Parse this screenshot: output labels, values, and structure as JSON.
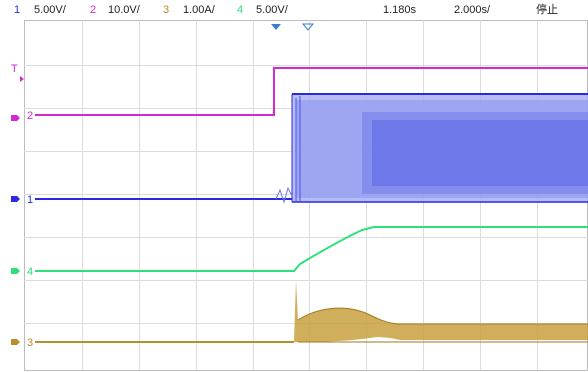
{
  "header": {
    "ch1": {
      "num": "1",
      "scale": "5.00V/"
    },
    "ch2": {
      "num": "2",
      "scale": "10.0V/"
    },
    "ch3": {
      "num": "3",
      "scale": "1.00A/"
    },
    "ch4": {
      "num": "4",
      "scale": "5.00V/"
    },
    "trigger_pos": "1.180s",
    "timebase": "2.000s/",
    "run_state": "停止"
  },
  "markers": {
    "trigger_level": "T",
    "ch2": "2",
    "ch1": "1",
    "ch4": "4",
    "ch3": "3"
  },
  "colors": {
    "ch1": "#2a2ae0",
    "ch2": "#d22ad2",
    "ch3": "#b8902a",
    "ch4": "#2ee07a",
    "grid": "#d8d8d8",
    "header_text": "#222222"
  }
}
